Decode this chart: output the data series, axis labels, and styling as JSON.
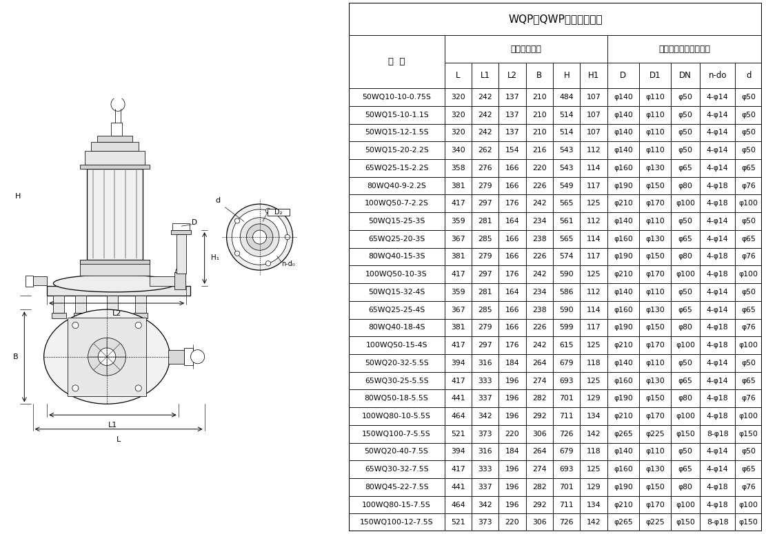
{
  "title": "WQP（QWP）安装尺寸表",
  "col_header_1": "型  号",
  "col_header_2": "外形安装尺寸",
  "col_header_3": "泵出口法兰及连接尺寸",
  "sub_headers": [
    "L",
    "L1",
    "L2",
    "B",
    "H",
    "H1",
    "D",
    "D1",
    "DN",
    "n-do",
    "d"
  ],
  "rows": [
    [
      "50WQ10-10-0.75S",
      "320",
      "242",
      "137",
      "210",
      "484",
      "107",
      "φ140",
      "φ110",
      "φ50",
      "4-φ14",
      "φ50"
    ],
    [
      "50WQ15-10-1.1S",
      "320",
      "242",
      "137",
      "210",
      "514",
      "107",
      "φ140",
      "φ110",
      "φ50",
      "4-φ14",
      "φ50"
    ],
    [
      "50WQ15-12-1.5S",
      "320",
      "242",
      "137",
      "210",
      "514",
      "107",
      "φ140",
      "φ110",
      "φ50",
      "4-φ14",
      "φ50"
    ],
    [
      "50WQ15-20-2.2S",
      "340",
      "262",
      "154",
      "216",
      "543",
      "112",
      "φ140",
      "φ110",
      "φ50",
      "4-φ14",
      "φ50"
    ],
    [
      "65WQ25-15-2.2S",
      "358",
      "276",
      "166",
      "220",
      "543",
      "114",
      "φ160",
      "φ130",
      "φ65",
      "4-φ14",
      "φ65"
    ],
    [
      "80WQ40-9-2.2S",
      "381",
      "279",
      "166",
      "226",
      "549",
      "117",
      "φ190",
      "φ150",
      "φ80",
      "4-φ18",
      "φ76"
    ],
    [
      "100WQ50-7-2.2S",
      "417",
      "297",
      "176",
      "242",
      "565",
      "125",
      "φ210",
      "φ170",
      "φ100",
      "4-φ18",
      "φ100"
    ],
    [
      "50WQ15-25-3S",
      "359",
      "281",
      "164",
      "234",
      "561",
      "112",
      "φ140",
      "φ110",
      "φ50",
      "4-φ14",
      "φ50"
    ],
    [
      "65WQ25-20-3S",
      "367",
      "285",
      "166",
      "238",
      "565",
      "114",
      "φ160",
      "φ130",
      "φ65",
      "4-φ14",
      "φ65"
    ],
    [
      "80WQ40-15-3S",
      "381",
      "279",
      "166",
      "226",
      "574",
      "117",
      "φ190",
      "φ150",
      "φ80",
      "4-φ18",
      "φ76"
    ],
    [
      "100WQ50-10-3S",
      "417",
      "297",
      "176",
      "242",
      "590",
      "125",
      "φ210",
      "φ170",
      "φ100",
      "4-φ18",
      "φ100"
    ],
    [
      "50WQ15-32-4S",
      "359",
      "281",
      "164",
      "234",
      "586",
      "112",
      "φ140",
      "φ110",
      "φ50",
      "4-φ14",
      "φ50"
    ],
    [
      "65WQ25-25-4S",
      "367",
      "285",
      "166",
      "238",
      "590",
      "114",
      "φ160",
      "φ130",
      "φ65",
      "4-φ14",
      "φ65"
    ],
    [
      "80WQ40-18-4S",
      "381",
      "279",
      "166",
      "226",
      "599",
      "117",
      "φ190",
      "φ150",
      "φ80",
      "4-φ18",
      "φ76"
    ],
    [
      "100WQ50-15-4S",
      "417",
      "297",
      "176",
      "242",
      "615",
      "125",
      "φ210",
      "φ170",
      "φ100",
      "4-φ18",
      "φ100"
    ],
    [
      "50WQ20-32-5.5S",
      "394",
      "316",
      "184",
      "264",
      "679",
      "118",
      "φ140",
      "φ110",
      "φ50",
      "4-φ14",
      "φ50"
    ],
    [
      "65WQ30-25-5.5S",
      "417",
      "333",
      "196",
      "274",
      "693",
      "125",
      "φ160",
      "φ130",
      "φ65",
      "4-φ14",
      "φ65"
    ],
    [
      "80WQ50-18-5.5S",
      "441",
      "337",
      "196",
      "282",
      "701",
      "129",
      "φ190",
      "φ150",
      "φ80",
      "4-φ18",
      "φ76"
    ],
    [
      "100WQ80-10-5.5S",
      "464",
      "342",
      "196",
      "292",
      "711",
      "134",
      "φ210",
      "φ170",
      "φ100",
      "4-φ18",
      "φ100"
    ],
    [
      "150WQ100-7-5.5S",
      "521",
      "373",
      "220",
      "306",
      "726",
      "142",
      "φ265",
      "φ225",
      "φ150",
      "8-φ18",
      "φ150"
    ],
    [
      "50WQ20-40-7.5S",
      "394",
      "316",
      "184",
      "264",
      "679",
      "118",
      "φ140",
      "φ110",
      "φ50",
      "4-φ14",
      "φ50"
    ],
    [
      "65WQ30-32-7.5S",
      "417",
      "333",
      "196",
      "274",
      "693",
      "125",
      "φ160",
      "φ130",
      "φ65",
      "4-φ14",
      "φ65"
    ],
    [
      "80WQ45-22-7.5S",
      "441",
      "337",
      "196",
      "282",
      "701",
      "129",
      "φ190",
      "φ150",
      "φ80",
      "4-φ18",
      "φ76"
    ],
    [
      "100WQ80-15-7.5S",
      "464",
      "342",
      "196",
      "292",
      "711",
      "134",
      "φ210",
      "φ170",
      "φ100",
      "4-φ18",
      "φ100"
    ],
    [
      "150WQ100-12-7.5S",
      "521",
      "373",
      "220",
      "306",
      "726",
      "142",
      "φ265",
      "φ225",
      "φ150",
      "8-φ18",
      "φ150"
    ]
  ],
  "border_color": "#000000",
  "table_title_fontsize": 11,
  "drawing_lw": 0.6
}
